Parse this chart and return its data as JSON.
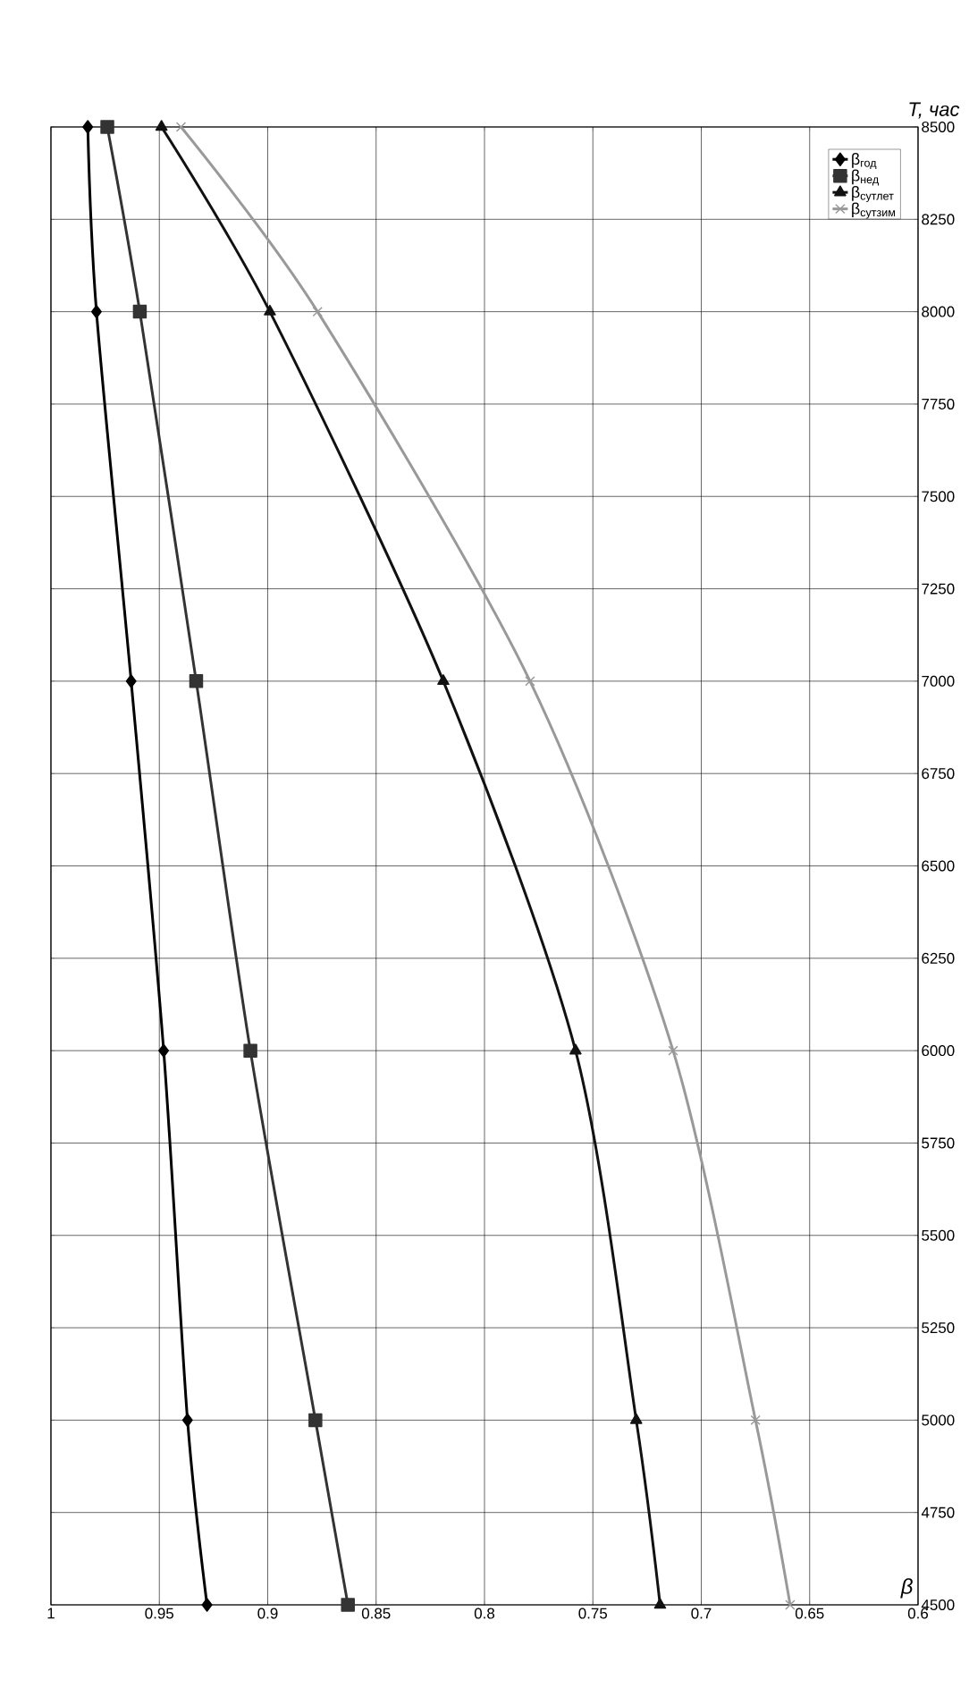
{
  "chart_data": {
    "type": "line",
    "xlabel": "β",
    "ylabel": "T, час",
    "series": [
      {
        "name": "β$_{год}$",
        "color": "#000000",
        "marker": "diamond",
        "x": [
          0.928,
          0.937,
          0.948,
          0.963,
          0.979,
          0.983
        ],
        "values": [
          4500,
          5000,
          6000,
          7000,
          8000,
          8500
        ]
      },
      {
        "name": "β$_{нед}$",
        "color": "#333333",
        "marker": "square",
        "x": [
          0.863,
          0.878,
          0.908,
          0.933,
          0.959,
          0.974
        ],
        "values": [
          4500,
          5000,
          6000,
          7000,
          8000,
          8500
        ]
      },
      {
        "name": "β$_{сутлет}$",
        "color": "#111111",
        "marker": "triangle",
        "x": [
          0.719,
          0.73,
          0.758,
          0.819,
          0.899,
          0.949
        ],
        "values": [
          4500,
          5000,
          6000,
          7000,
          8000,
          8500
        ]
      },
      {
        "name": "β$_{сутзим}$",
        "color": "#999999",
        "marker": "cross",
        "x": [
          0.659,
          0.675,
          0.713,
          0.779,
          0.877,
          0.94
        ],
        "values": [
          4500,
          5000,
          6000,
          7000,
          8000,
          8500
        ]
      }
    ],
    "xlim": [
      1,
      0.6
    ],
    "xticks": [
      1,
      0.95,
      0.9,
      0.85,
      0.8,
      0.75,
      0.7,
      0.65,
      0.6
    ],
    "ylim": [
      4500,
      8500
    ],
    "yticks": [
      4500,
      4750,
      5000,
      5250,
      5500,
      5750,
      6000,
      6250,
      6500,
      6750,
      7000,
      7250,
      7500,
      7750,
      8000,
      8250,
      8500
    ],
    "grid": true,
    "legend": "top right"
  }
}
